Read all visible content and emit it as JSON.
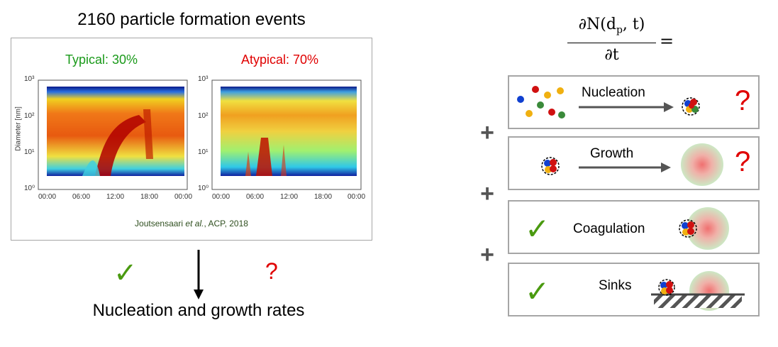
{
  "left": {
    "title": "2160 particle formation events",
    "typical_label": "Typical: 30%",
    "atypical_label": "Atypical: 70%",
    "ylabel": "Diameter [nm]",
    "yticks": [
      "10⁰",
      "10¹",
      "10²",
      "10³"
    ],
    "xticks": [
      "00:00",
      "06:00",
      "12:00",
      "18:00",
      "00:00"
    ],
    "citation_prefix": "Joutsensaari ",
    "citation_etal": "et al.",
    "citation_suffix": ", ACP, 2018",
    "check": "✓",
    "qmark": "?",
    "caption": "Nucleation and growth rates"
  },
  "right": {
    "equation_numerator": "∂N(d",
    "equation_sub": "p",
    "equation_num_tail": ", t)",
    "equation_denominator": "∂t",
    "equals": "=",
    "plus": "+",
    "processes": [
      {
        "label": "Nucleation",
        "status": "?"
      },
      {
        "label": "Growth",
        "status": "?"
      },
      {
        "label": "Coagulation",
        "status": "✓"
      },
      {
        "label": "Sinks",
        "status": "✓"
      }
    ]
  },
  "colors": {
    "typical": "#1a9a1a",
    "atypical": "#e00000",
    "check": "#4a9a10",
    "question": "#e00000"
  }
}
